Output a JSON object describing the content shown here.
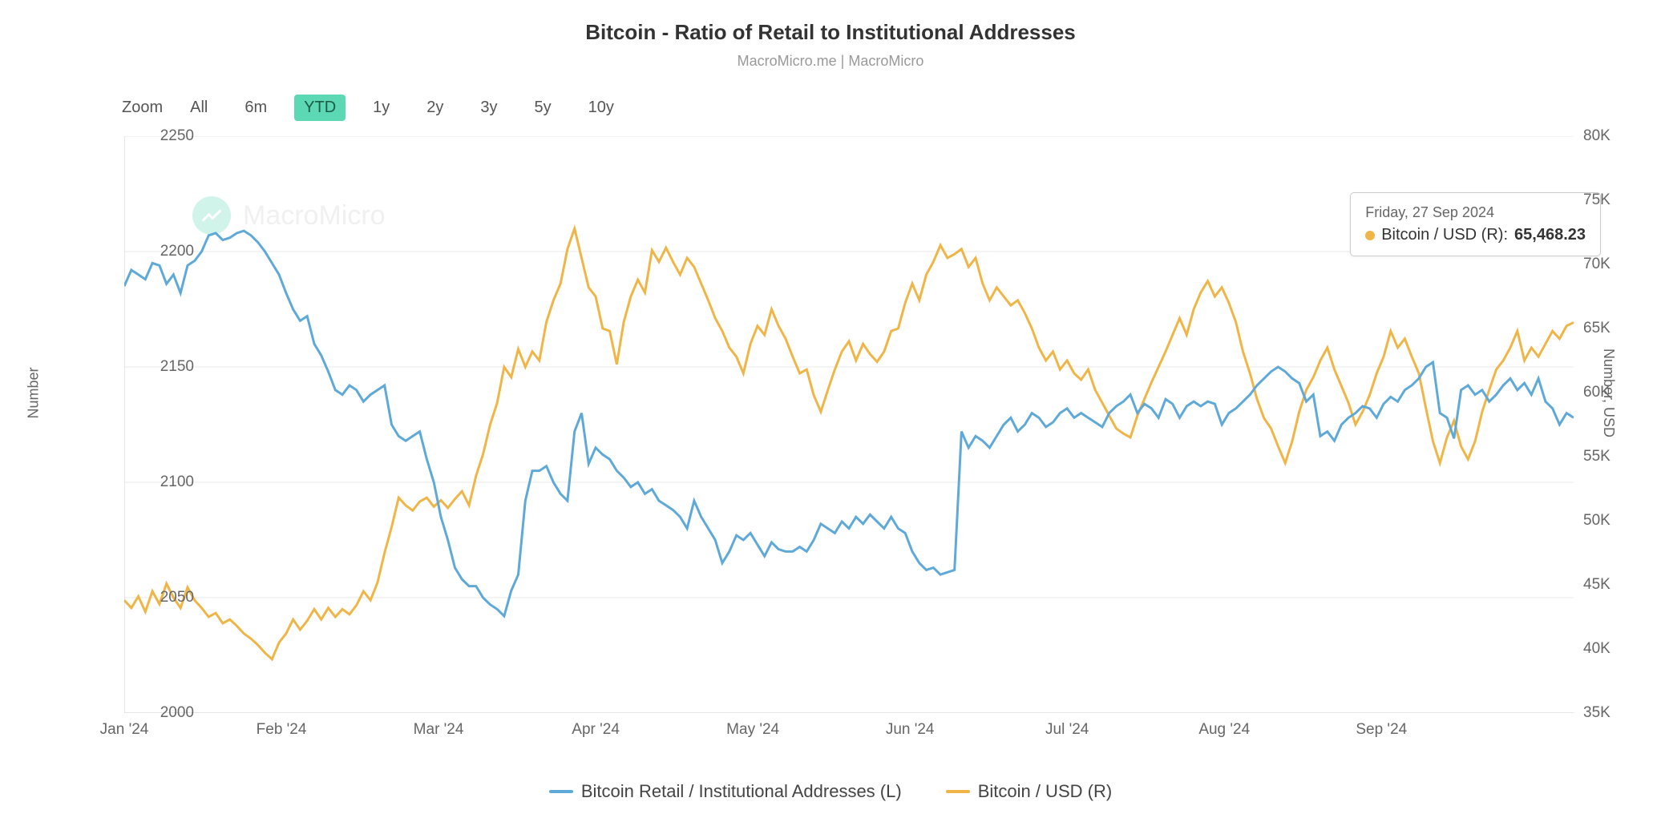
{
  "title": "Bitcoin - Ratio of Retail to Institutional Addresses",
  "subtitle": "MacroMicro.me | MacroMicro",
  "watermark": "MacroMicro",
  "zoom": {
    "label": "Zoom",
    "options": [
      "All",
      "6m",
      "YTD",
      "1y",
      "2y",
      "3y",
      "5y",
      "10y"
    ],
    "active": "YTD"
  },
  "axes": {
    "yL": {
      "label": "Number",
      "min": 2000,
      "max": 2250,
      "ticks": [
        2000,
        2050,
        2100,
        2150,
        2200,
        2250
      ]
    },
    "yR": {
      "label": "Number, USD",
      "min": 35000,
      "max": 80000,
      "ticks": [
        "35K",
        "40K",
        "45K",
        "50K",
        "55K",
        "60K",
        "65K",
        "70K",
        "75K",
        "80K"
      ],
      "tick_vals": [
        35000,
        40000,
        45000,
        50000,
        55000,
        60000,
        65000,
        70000,
        75000,
        80000
      ]
    },
    "x": {
      "ticks": [
        "Jan '24",
        "Feb '24",
        "Mar '24",
        "Apr '24",
        "May '24",
        "Jun '24",
        "Jul '24",
        "Aug '24",
        "Sep '24"
      ]
    }
  },
  "colors": {
    "series1": "#5fa9d8",
    "series2": "#f0b547",
    "grid": "#e8e8e8",
    "text": "#666666"
  },
  "tooltip": {
    "date": "Friday, 27 Sep 2024",
    "series": "Bitcoin / USD (R):",
    "value": "65,468.23",
    "dot_color": "#f0b547"
  },
  "legend": [
    {
      "label": "Bitcoin Retail / Institutional Addresses (L)",
      "color": "#5fa9d8"
    },
    {
      "label": "Bitcoin / USD (R)",
      "color": "#f0b547"
    }
  ],
  "series1_name": "Bitcoin Retail / Institutional Addresses (L)",
  "series2_name": "Bitcoin / USD (R)",
  "series1": [
    2185,
    2192,
    2190,
    2188,
    2195,
    2194,
    2186,
    2190,
    2182,
    2194,
    2196,
    2200,
    2207,
    2208,
    2205,
    2206,
    2208,
    2209,
    2207,
    2204,
    2200,
    2195,
    2190,
    2182,
    2175,
    2170,
    2172,
    2160,
    2155,
    2148,
    2140,
    2138,
    2142,
    2140,
    2135,
    2138,
    2140,
    2142,
    2125,
    2120,
    2118,
    2120,
    2122,
    2110,
    2100,
    2085,
    2075,
    2063,
    2058,
    2055,
    2055,
    2050,
    2047,
    2045,
    2042,
    2053,
    2060,
    2092,
    2105,
    2105,
    2107,
    2100,
    2095,
    2092,
    2122,
    2130,
    2108,
    2115,
    2112,
    2110,
    2105,
    2102,
    2098,
    2100,
    2095,
    2097,
    2092,
    2090,
    2088,
    2085,
    2080,
    2092,
    2085,
    2080,
    2075,
    2065,
    2070,
    2077,
    2075,
    2078,
    2073,
    2068,
    2074,
    2071,
    2070,
    2070,
    2072,
    2070,
    2075,
    2082,
    2080,
    2078,
    2083,
    2080,
    2085,
    2082,
    2086,
    2083,
    2080,
    2085,
    2080,
    2078,
    2070,
    2065,
    2062,
    2063,
    2060,
    2061,
    2062,
    2122,
    2115,
    2120,
    2118,
    2115,
    2120,
    2125,
    2128,
    2122,
    2125,
    2130,
    2128,
    2124,
    2126,
    2130,
    2132,
    2128,
    2130,
    2128,
    2126,
    2124,
    2130,
    2133,
    2135,
    2138,
    2130,
    2134,
    2132,
    2128,
    2136,
    2134,
    2128,
    2133,
    2135,
    2133,
    2135,
    2134,
    2125,
    2130,
    2132,
    2135,
    2138,
    2142,
    2145,
    2148,
    2150,
    2148,
    2145,
    2143,
    2135,
    2138,
    2120,
    2122,
    2118,
    2125,
    2128,
    2130,
    2133,
    2132,
    2128,
    2134,
    2137,
    2135,
    2140,
    2142,
    2145,
    2150,
    2152,
    2130,
    2128,
    2119,
    2140,
    2142,
    2138,
    2140,
    2135,
    2138,
    2142,
    2145,
    2140,
    2143,
    2138,
    2145,
    2135,
    2132,
    2125,
    2130,
    2128
  ],
  "series2": [
    43800,
    43200,
    44100,
    42900,
    44500,
    43500,
    45100,
    44000,
    43200,
    44800,
    43800,
    43200,
    42500,
    42800,
    42000,
    42300,
    41800,
    41200,
    40800,
    40300,
    39700,
    39200,
    40500,
    41200,
    42300,
    41500,
    42200,
    43100,
    42300,
    43200,
    42500,
    43100,
    42700,
    43400,
    44500,
    43800,
    45200,
    47500,
    49500,
    51800,
    51200,
    50800,
    51500,
    51800,
    51100,
    51600,
    51000,
    51700,
    52300,
    51200,
    53500,
    55200,
    57500,
    59200,
    62000,
    61200,
    63400,
    62000,
    63200,
    62500,
    65500,
    67200,
    68500,
    71200,
    72800,
    70500,
    68200,
    67500,
    65000,
    64800,
    62200,
    65500,
    67500,
    68800,
    67800,
    71100,
    70200,
    71300,
    70200,
    69200,
    70500,
    69800,
    68500,
    67200,
    65800,
    64800,
    63500,
    62800,
    61500,
    63800,
    65200,
    64500,
    66500,
    65200,
    64200,
    62800,
    61500,
    61800,
    59800,
    58500,
    60200,
    61800,
    63200,
    64000,
    62500,
    63800,
    63000,
    62400,
    63200,
    64800,
    65000,
    67000,
    68500,
    67200,
    69200,
    70200,
    71500,
    70500,
    70800,
    71200,
    69800,
    70500,
    68500,
    67200,
    68200,
    67500,
    66800,
    67200,
    66200,
    65000,
    63500,
    62500,
    63200,
    61800,
    62500,
    61500,
    61000,
    61800,
    60200,
    59200,
    58200,
    57200,
    56800,
    56500,
    58200,
    59500,
    60800,
    62000,
    63200,
    64500,
    65800,
    64500,
    66500,
    67800,
    68700,
    67500,
    68200,
    67000,
    65500,
    63200,
    61500,
    59500,
    58000,
    57200,
    55800,
    54500,
    56200,
    58500,
    60200,
    61200,
    62500,
    63500,
    61800,
    60500,
    59200,
    57500,
    58500,
    59800,
    61500,
    62800,
    64800,
    63500,
    64200,
    62800,
    61500,
    58800,
    56200,
    54500,
    56500,
    57800,
    55800,
    54800,
    56200,
    58500,
    60200,
    61800,
    62500,
    63500,
    64800,
    62500,
    63500,
    62800,
    63800,
    64800,
    64200,
    65200,
    65468
  ]
}
